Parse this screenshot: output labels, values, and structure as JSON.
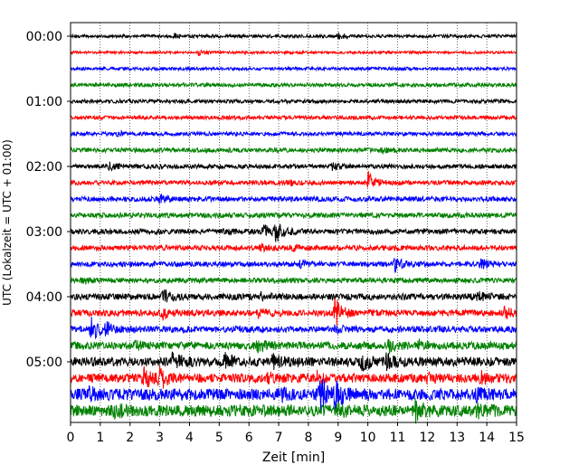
{
  "chart_data": {
    "type": "line",
    "title": "",
    "xlabel": "Zeit  [min]",
    "ylabel": "UTC (Lokalzeit = UTC + 01:00)",
    "xlim": [
      0,
      15
    ],
    "x_ticks": [
      "0",
      "1",
      "2",
      "3",
      "4",
      "5",
      "6",
      "7",
      "8",
      "9",
      "10",
      "11",
      "12",
      "13",
      "14",
      "15"
    ],
    "y_tick_labels": [
      "00:00",
      "01:00",
      "02:00",
      "03:00",
      "04:00",
      "05:00"
    ],
    "grid": "vertical dotted lines at each minute",
    "line_colors": [
      "#000000",
      "#ff0000",
      "#0000ff",
      "#008000"
    ],
    "traces_per_hour": 4,
    "minutes_per_trace": 15,
    "series": [
      {
        "start": "00:00",
        "color": "#000000",
        "noise": 0.25,
        "events": [
          [
            3.5,
            0.3
          ],
          [
            9.0,
            0.4
          ]
        ]
      },
      {
        "start": "00:15",
        "color": "#ff0000",
        "noise": 0.2,
        "events": [
          [
            4.3,
            0.4
          ]
        ]
      },
      {
        "start": "00:30",
        "color": "#0000ff",
        "noise": 0.25,
        "events": []
      },
      {
        "start": "00:45",
        "color": "#008000",
        "noise": 0.3,
        "events": []
      },
      {
        "start": "01:00",
        "color": "#000000",
        "noise": 0.3,
        "events": []
      },
      {
        "start": "01:15",
        "color": "#ff0000",
        "noise": 0.3,
        "events": []
      },
      {
        "start": "01:30",
        "color": "#0000ff",
        "noise": 0.3,
        "events": [
          [
            1.6,
            0.3
          ]
        ]
      },
      {
        "start": "01:45",
        "color": "#008000",
        "noise": 0.35,
        "events": [
          [
            10.5,
            0.3
          ]
        ]
      },
      {
        "start": "02:00",
        "color": "#000000",
        "noise": 0.35,
        "events": [
          [
            1.3,
            0.6
          ],
          [
            8.8,
            0.5
          ]
        ]
      },
      {
        "start": "02:15",
        "color": "#ff0000",
        "noise": 0.35,
        "events": [
          [
            10.0,
            1.6
          ],
          [
            7.3,
            0.4
          ]
        ]
      },
      {
        "start": "02:30",
        "color": "#0000ff",
        "noise": 0.4,
        "events": [
          [
            3.0,
            0.8
          ]
        ]
      },
      {
        "start": "02:45",
        "color": "#008000",
        "noise": 0.4,
        "events": []
      },
      {
        "start": "03:00",
        "color": "#000000",
        "noise": 0.4,
        "events": [
          [
            6.9,
            1.6
          ],
          [
            6.5,
            1.0
          ],
          [
            5.2,
            0.4
          ]
        ]
      },
      {
        "start": "03:15",
        "color": "#ff0000",
        "noise": 0.4,
        "events": [
          [
            6.4,
            0.4
          ],
          [
            7.4,
            0.4
          ]
        ]
      },
      {
        "start": "03:30",
        "color": "#0000ff",
        "noise": 0.4,
        "events": [
          [
            10.9,
            1.1
          ],
          [
            13.8,
            0.8
          ],
          [
            7.7,
            0.4
          ]
        ]
      },
      {
        "start": "03:45",
        "color": "#008000",
        "noise": 0.4,
        "events": [
          [
            0.4,
            0.4
          ]
        ]
      },
      {
        "start": "04:00",
        "color": "#000000",
        "noise": 0.5,
        "events": [
          [
            3.1,
            1.2
          ],
          [
            6.4,
            0.5
          ],
          [
            13.7,
            0.6
          ]
        ]
      },
      {
        "start": "04:15",
        "color": "#ff0000",
        "noise": 0.5,
        "events": [
          [
            8.9,
            2.2
          ],
          [
            3.1,
            0.8
          ],
          [
            14.6,
            0.9
          ],
          [
            6.3,
            0.5
          ]
        ]
      },
      {
        "start": "04:30",
        "color": "#0000ff",
        "noise": 0.5,
        "events": [
          [
            0.7,
            2.0
          ],
          [
            1.2,
            0.8
          ],
          [
            8.9,
            0.5
          ]
        ]
      },
      {
        "start": "04:45",
        "color": "#008000",
        "noise": 0.6,
        "events": [
          [
            6.2,
            1.0
          ],
          [
            10.7,
            0.9
          ],
          [
            2.2,
            0.5
          ],
          [
            11.7,
            0.6
          ]
        ]
      },
      {
        "start": "05:00",
        "color": "#000000",
        "noise": 0.7,
        "events": [
          [
            3.4,
            1.8
          ],
          [
            5.2,
            1.3
          ],
          [
            6.8,
            0.9
          ],
          [
            9.8,
            1.2
          ],
          [
            10.6,
            0.9
          ]
        ]
      },
      {
        "start": "05:15",
        "color": "#ff0000",
        "noise": 0.7,
        "events": [
          [
            2.4,
            2.0
          ],
          [
            3.0,
            1.6
          ],
          [
            6.6,
            0.6
          ],
          [
            8.3,
            0.8
          ],
          [
            12.0,
            0.6
          ],
          [
            13.8,
            0.7
          ]
        ]
      },
      {
        "start": "05:30",
        "color": "#0000ff",
        "noise": 0.9,
        "events": [
          [
            8.4,
            2.4
          ],
          [
            8.9,
            1.8
          ],
          [
            0.6,
            0.8
          ],
          [
            7.0,
            0.9
          ],
          [
            13.6,
            0.8
          ]
        ]
      },
      {
        "start": "05:45",
        "color": "#008000",
        "noise": 0.9,
        "events": [
          [
            11.6,
            1.8
          ],
          [
            13.7,
            1.2
          ],
          [
            8.9,
            1.0
          ],
          [
            1.5,
            0.8
          ]
        ]
      }
    ]
  }
}
